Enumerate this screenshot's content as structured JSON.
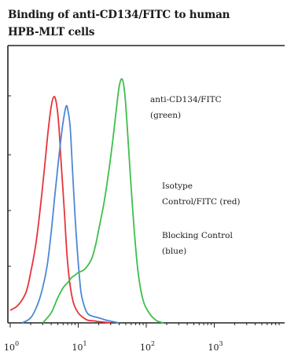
{
  "chart_data": {
    "type": "line",
    "title": "Binding of anti-CD134/FITC to human HPB-MLT cells",
    "title_lines": [
      "Binding of anti-CD134/FITC to human",
      "HPB-MLT cells"
    ],
    "x_scale": "log",
    "xlim": [
      1,
      10000
    ],
    "ylim": [
      0,
      100
    ],
    "x_ticks": [
      {
        "base": "10",
        "exp": "0",
        "value": 1
      },
      {
        "base": "10",
        "exp": "1",
        "value": 10
      },
      {
        "base": "10",
        "exp": "2",
        "value": 100
      },
      {
        "base": "10",
        "exp": "3",
        "value": 1000
      }
    ],
    "grid": false,
    "series": [
      {
        "name": "Isotype Control/FITC (red)",
        "color": "#e8333b",
        "x": [
          1.0,
          1.3,
          1.7,
          2.0,
          2.4,
          2.8,
          3.2,
          3.6,
          4.0,
          4.4,
          4.8,
          5.2,
          5.6,
          6.2,
          6.8,
          7.5,
          8.5,
          10,
          12,
          14,
          17,
          20,
          24,
          30
        ],
        "y": [
          5,
          7,
          12,
          20,
          32,
          47,
          62,
          76,
          86,
          90,
          87,
          78,
          64,
          46,
          28,
          16,
          8,
          4,
          2,
          1,
          0.8,
          0.5,
          0.3,
          0
        ]
      },
      {
        "name": "Blocking Control (blue)",
        "color": "#4d88d6",
        "x": [
          1.5,
          2.0,
          2.5,
          3.0,
          3.5,
          4.0,
          4.5,
          5.0,
          5.5,
          6.0,
          6.6,
          7.0,
          7.6,
          8.2,
          9.0,
          10,
          11,
          12.5,
          14,
          17,
          20,
          25,
          32,
          40
        ],
        "y": [
          0,
          2,
          7,
          14,
          23,
          36,
          50,
          62,
          72,
          80,
          86,
          85,
          78,
          62,
          42,
          24,
          12,
          6,
          3.5,
          2.5,
          2,
          1.2,
          0.5,
          0
        ]
      },
      {
        "name": "anti-CD134/FITC (green)",
        "color": "#3dbf4a",
        "x": [
          3.0,
          4.0,
          5.0,
          6.0,
          7.0,
          8.0,
          9.0,
          10,
          12,
          14,
          16,
          18,
          20,
          24,
          28,
          32,
          36,
          40,
          44,
          48,
          52,
          58,
          66,
          76,
          90,
          110,
          140,
          180
        ],
        "y": [
          0,
          4,
          10,
          14,
          16,
          18,
          19,
          20,
          21,
          23,
          26,
          31,
          37,
          48,
          60,
          72,
          84,
          94,
          97,
          92,
          80,
          60,
          38,
          20,
          9,
          4,
          1,
          0
        ]
      }
    ],
    "annotations": [
      {
        "lines": [
          "anti-CD134/FITC",
          "(green)"
        ]
      },
      {
        "lines": [
          "Isotype",
          "Control/FITC (red)"
        ]
      },
      {
        "lines": [
          "Blocking Control",
          "(blue)"
        ]
      }
    ]
  }
}
